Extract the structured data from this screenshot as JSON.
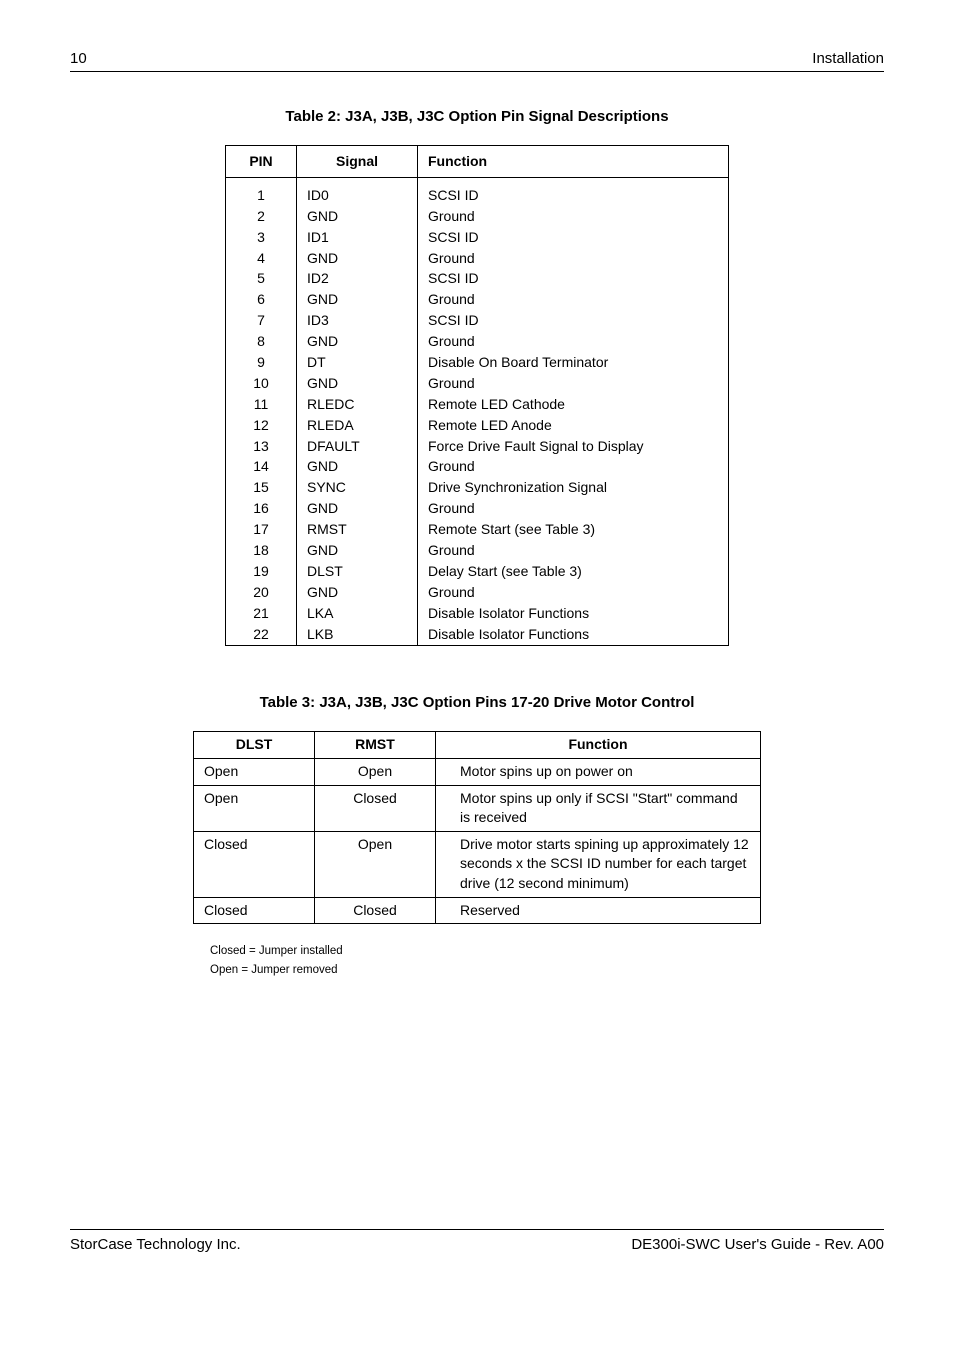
{
  "header": {
    "page_number": "10",
    "section": "Installation"
  },
  "table2": {
    "caption": "Table 2:  J3A, J3B, J3C Option Pin Signal Descriptions",
    "headers": [
      "PIN",
      "Signal",
      "Function"
    ],
    "rows": [
      [
        "1",
        "ID0",
        "SCSI ID"
      ],
      [
        "2",
        "GND",
        "Ground"
      ],
      [
        "3",
        "ID1",
        "SCSI ID"
      ],
      [
        "4",
        "GND",
        "Ground"
      ],
      [
        "5",
        "ID2",
        "SCSI ID"
      ],
      [
        "6",
        "GND",
        "Ground"
      ],
      [
        "7",
        "ID3",
        "SCSI ID"
      ],
      [
        "8",
        "GND",
        "Ground"
      ],
      [
        "9",
        "DT",
        "Disable On Board Terminator"
      ],
      [
        "10",
        "GND",
        "Ground"
      ],
      [
        "11",
        "RLEDC",
        "Remote LED Cathode"
      ],
      [
        "12",
        "RLEDA",
        "Remote LED Anode"
      ],
      [
        "13",
        "DFAULT",
        "Force Drive Fault Signal to Display"
      ],
      [
        "14",
        "GND",
        "Ground"
      ],
      [
        "15",
        "SYNC",
        "Drive Synchronization Signal"
      ],
      [
        "16",
        "GND",
        "Ground"
      ],
      [
        "17",
        "RMST",
        "Remote Start (see Table 3)"
      ],
      [
        "18",
        "GND",
        "Ground"
      ],
      [
        "19",
        "DLST",
        "Delay Start (see Table 3)"
      ],
      [
        "20",
        "GND",
        "Ground"
      ],
      [
        "21",
        "LKA",
        "Disable Isolator Functions"
      ],
      [
        "22",
        "LKB",
        "Disable Isolator Functions"
      ]
    ]
  },
  "table3": {
    "caption": "Table 3:  J3A, J3B, J3C Option Pins 17-20 Drive Motor Control",
    "headers": [
      "DLST",
      "RMST",
      "Function"
    ],
    "rows": [
      {
        "dlst": "Open",
        "rmst": "Open",
        "func": "Motor spins up on power on"
      },
      {
        "dlst": "Open",
        "rmst": "Closed",
        "func": "Motor spins up only if SCSI \"Start\" command is received"
      },
      {
        "dlst": "Closed",
        "rmst": "Open",
        "func": "Drive motor starts spining up approximately 12 seconds x the SCSI ID number for each target drive (12 second minimum)"
      },
      {
        "dlst": "Closed",
        "rmst": "Closed",
        "func": "Reserved"
      }
    ]
  },
  "legend": {
    "line1": "Closed = Jumper installed",
    "line2": "Open = Jumper removed"
  },
  "footer": {
    "left": "StorCase Technology Inc.",
    "right": "DE300i-SWC User's Guide - Rev. A00"
  }
}
